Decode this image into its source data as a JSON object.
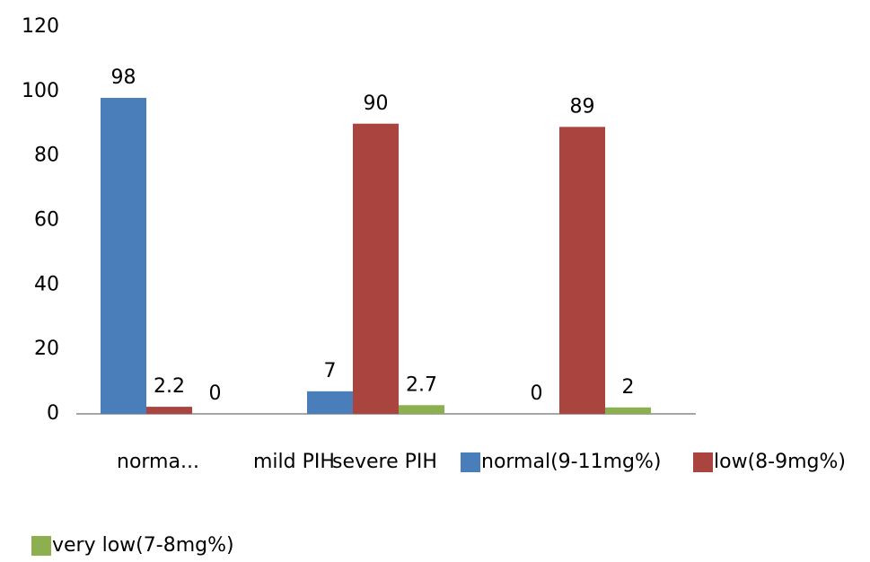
{
  "chart_data": {
    "type": "bar",
    "categories": [
      "norma...",
      "mild PIH",
      "severe PIH"
    ],
    "series": [
      {
        "name": "normal(9-11mg%)",
        "color": "#4a7ebb",
        "values": [
          98,
          7,
          0
        ]
      },
      {
        "name": "low(8-9mg%)",
        "color": "#a9443f",
        "values": [
          2.2,
          90,
          89
        ]
      },
      {
        "name": "very low(7-8mg%)",
        "color": "#8cb04f",
        "values": [
          0,
          2.7,
          2
        ]
      }
    ],
    "ylim": [
      0,
      120
    ],
    "yticks": [
      0,
      20,
      40,
      60,
      80,
      100,
      120
    ],
    "grid": false
  }
}
